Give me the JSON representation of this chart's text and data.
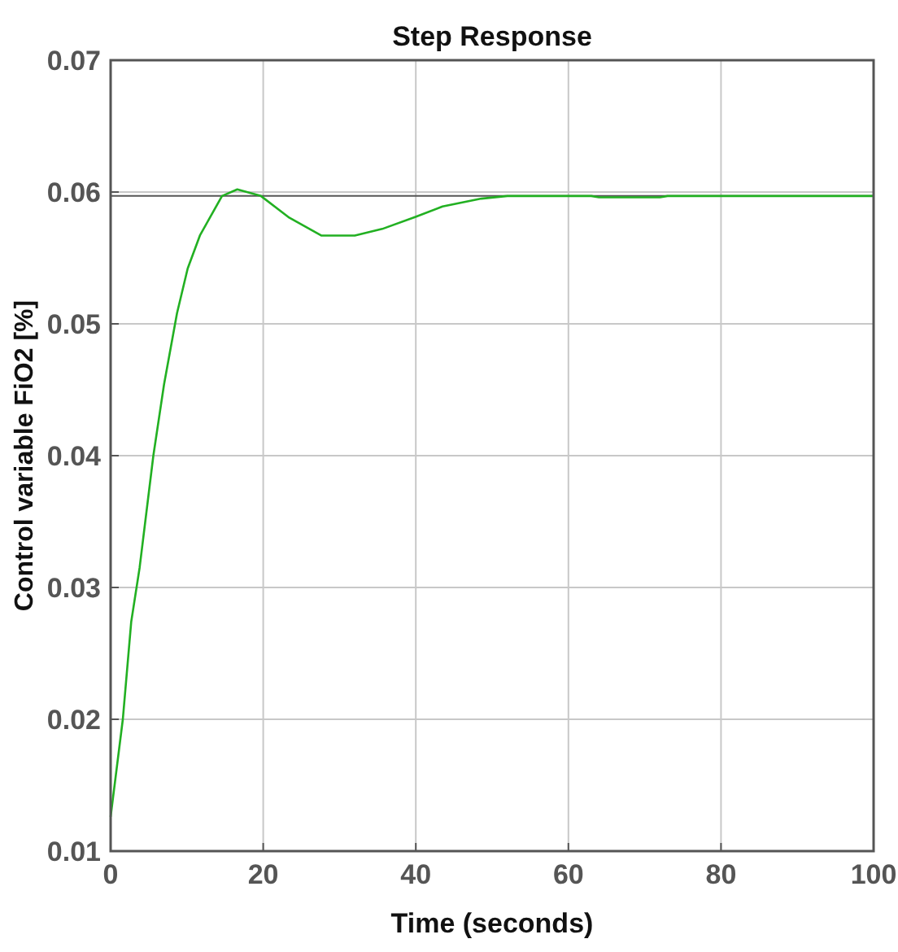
{
  "chart_data": {
    "type": "line",
    "title": "Step Response",
    "xlabel": "Time (seconds)",
    "ylabel": "Control variable FiO2 [%]",
    "x": [
      0,
      1.6,
      2.7,
      3.8,
      5.6,
      7,
      8.7,
      10.1,
      11.7,
      14.6,
      16.6,
      19.7,
      23.3,
      27.6,
      32,
      35.6,
      39.9,
      43.5,
      48.6,
      52,
      63,
      64,
      72,
      73,
      100
    ],
    "series": [
      {
        "color": "#22b022",
        "values": [
          0.0126,
          0.02,
          0.0274,
          0.0315,
          0.04,
          0.0454,
          0.0508,
          0.0542,
          0.0567,
          0.0597,
          0.0602,
          0.0597,
          0.0581,
          0.0567,
          0.0567,
          0.0572,
          0.0581,
          0.0589,
          0.0595,
          0.0597,
          0.0597,
          0.0596,
          0.0596,
          0.0597,
          0.0597
        ]
      }
    ],
    "xlim": [
      0,
      100
    ],
    "ylim": [
      0.01,
      0.07
    ],
    "xticks": [
      0,
      20,
      40,
      60,
      80,
      100
    ],
    "yticks": [
      0.01,
      0.02,
      0.03,
      0.04,
      0.05,
      0.06,
      0.07
    ],
    "ref_lines": [
      {
        "axis": "y",
        "value": 0.0597,
        "color": "#555555"
      }
    ],
    "grid": true,
    "marker": "none",
    "line_style": "solid"
  }
}
